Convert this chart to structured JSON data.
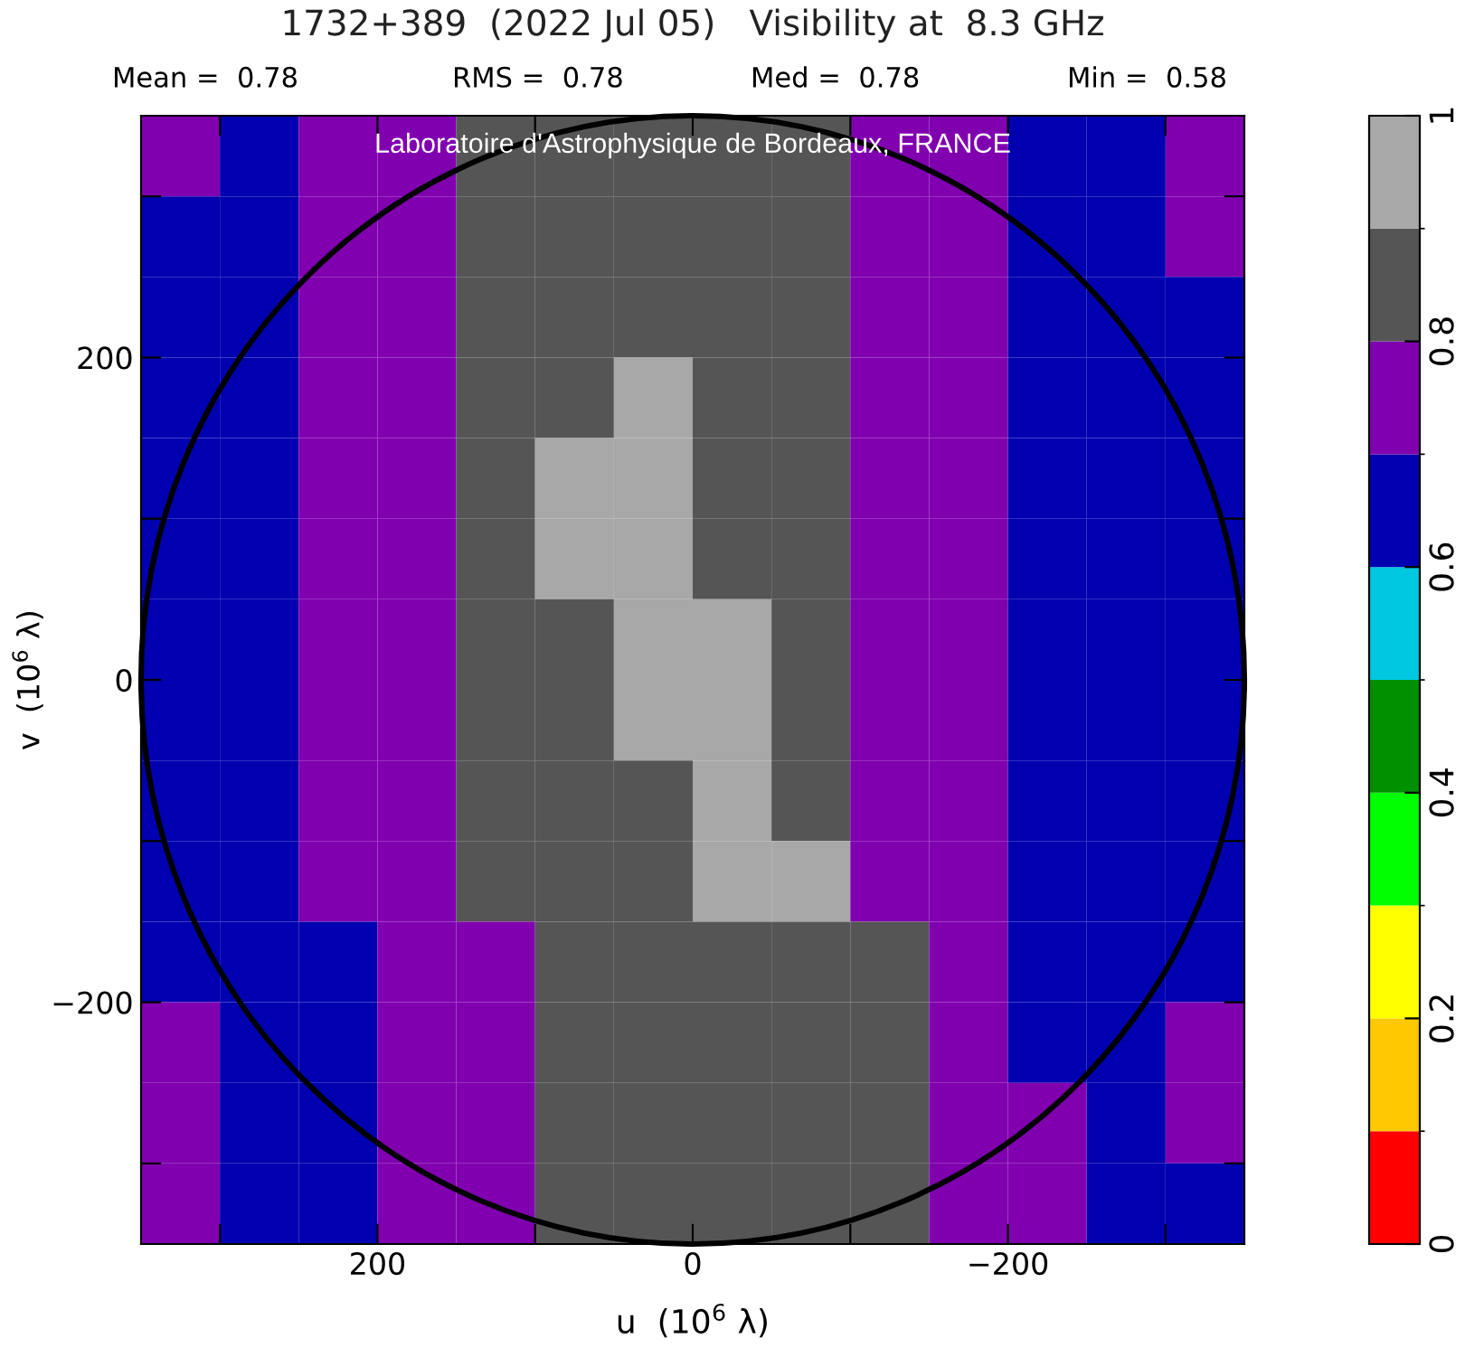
{
  "chart_data": {
    "type": "heatmap",
    "title": "1732+389  (2022 Jul 05)   Visibility at  8.3 GHz",
    "xlabel": "u  (10$^{6}$ λ)",
    "ylabel": "v  (10$^{6}$ λ)",
    "annotations": [
      "Mean =  0.78",
      "RMS =  0.78",
      "Med =  0.78",
      "Min =  0.58",
      "Laboratoire d'Astrophysique de Bordeaux, FRANCE"
    ],
    "x": [
      325,
      275,
      225,
      175,
      125,
      75,
      25,
      -25,
      -75,
      -125,
      -175,
      -225,
      -275,
      -325
    ],
    "y": [
      325,
      275,
      225,
      175,
      125,
      75,
      25,
      -25,
      -75,
      -125,
      -175,
      -225,
      -275,
      -325
    ],
    "xlim": [
      350,
      -350
    ],
    "ylim": [
      -350,
      350
    ],
    "xticks": [
      {
        "value": 300,
        "label": null
      },
      200,
      {
        "value": 100,
        "label": null
      },
      0,
      {
        "value": -100,
        "label": null
      },
      {
        "value": -200,
        "label": "−200"
      },
      {
        "value": -300,
        "label": null
      }
    ],
    "yticks": [
      {
        "value": -300,
        "label": null
      },
      {
        "value": -200,
        "label": "−200"
      },
      {
        "value": -100,
        "label": null
      },
      0,
      {
        "value": 100,
        "label": null
      },
      200,
      {
        "value": 300,
        "label": null
      }
    ],
    "clim": [
      0,
      1
    ],
    "cticks": [
      0,
      0.2,
      0.4,
      0.6,
      0.8,
      1
    ],
    "colors": [
      "#ff0000",
      "#ffc800",
      "#ffff00",
      "#00ff00",
      "#009000",
      "#00c8e0",
      "#0000b0",
      "#8000b0",
      "#555555",
      "#a8a8a8"
    ],
    "cells": [
      [
        0.75,
        0.65,
        0.75,
        0.75,
        0.85,
        0.85,
        0.85,
        0.85,
        0.85,
        0.75,
        0.75,
        0.65,
        0.65,
        0.75
      ],
      [
        0.65,
        0.65,
        0.75,
        0.75,
        0.85,
        0.85,
        0.85,
        0.85,
        0.85,
        0.75,
        0.75,
        0.65,
        0.65,
        0.75
      ],
      [
        0.65,
        0.65,
        0.75,
        0.75,
        0.85,
        0.85,
        0.85,
        0.85,
        0.85,
        0.75,
        0.75,
        0.65,
        0.65,
        0.65
      ],
      [
        0.65,
        0.65,
        0.75,
        0.75,
        0.85,
        0.85,
        0.95,
        0.85,
        0.85,
        0.75,
        0.75,
        0.65,
        0.65,
        0.65
      ],
      [
        0.65,
        0.65,
        0.75,
        0.75,
        0.85,
        0.95,
        0.95,
        0.85,
        0.85,
        0.75,
        0.75,
        0.65,
        0.65,
        0.65
      ],
      [
        0.65,
        0.65,
        0.75,
        0.75,
        0.85,
        0.95,
        0.95,
        0.85,
        0.85,
        0.75,
        0.75,
        0.65,
        0.65,
        0.65
      ],
      [
        0.65,
        0.65,
        0.75,
        0.75,
        0.85,
        0.85,
        0.95,
        0.95,
        0.85,
        0.75,
        0.75,
        0.65,
        0.65,
        0.65
      ],
      [
        0.65,
        0.65,
        0.75,
        0.75,
        0.85,
        0.85,
        0.95,
        0.95,
        0.85,
        0.75,
        0.75,
        0.65,
        0.65,
        0.65
      ],
      [
        0.65,
        0.65,
        0.75,
        0.75,
        0.85,
        0.85,
        0.85,
        0.95,
        0.85,
        0.75,
        0.75,
        0.65,
        0.65,
        0.65
      ],
      [
        0.65,
        0.65,
        0.75,
        0.75,
        0.85,
        0.85,
        0.85,
        0.95,
        0.95,
        0.75,
        0.75,
        0.65,
        0.65,
        0.65
      ],
      [
        0.65,
        0.65,
        0.65,
        0.75,
        0.75,
        0.85,
        0.85,
        0.85,
        0.85,
        0.85,
        0.75,
        0.65,
        0.65,
        0.65
      ],
      [
        0.75,
        0.65,
        0.65,
        0.75,
        0.75,
        0.85,
        0.85,
        0.85,
        0.85,
        0.85,
        0.75,
        0.65,
        0.65,
        0.75
      ],
      [
        0.75,
        0.65,
        0.65,
        0.75,
        0.75,
        0.85,
        0.85,
        0.85,
        0.85,
        0.85,
        0.75,
        0.75,
        0.65,
        0.75
      ],
      [
        0.75,
        0.65,
        0.65,
        0.75,
        0.75,
        0.85,
        0.85,
        0.85,
        0.85,
        0.85,
        0.75,
        0.75,
        0.65,
        0.65
      ]
    ],
    "grid": false
  }
}
